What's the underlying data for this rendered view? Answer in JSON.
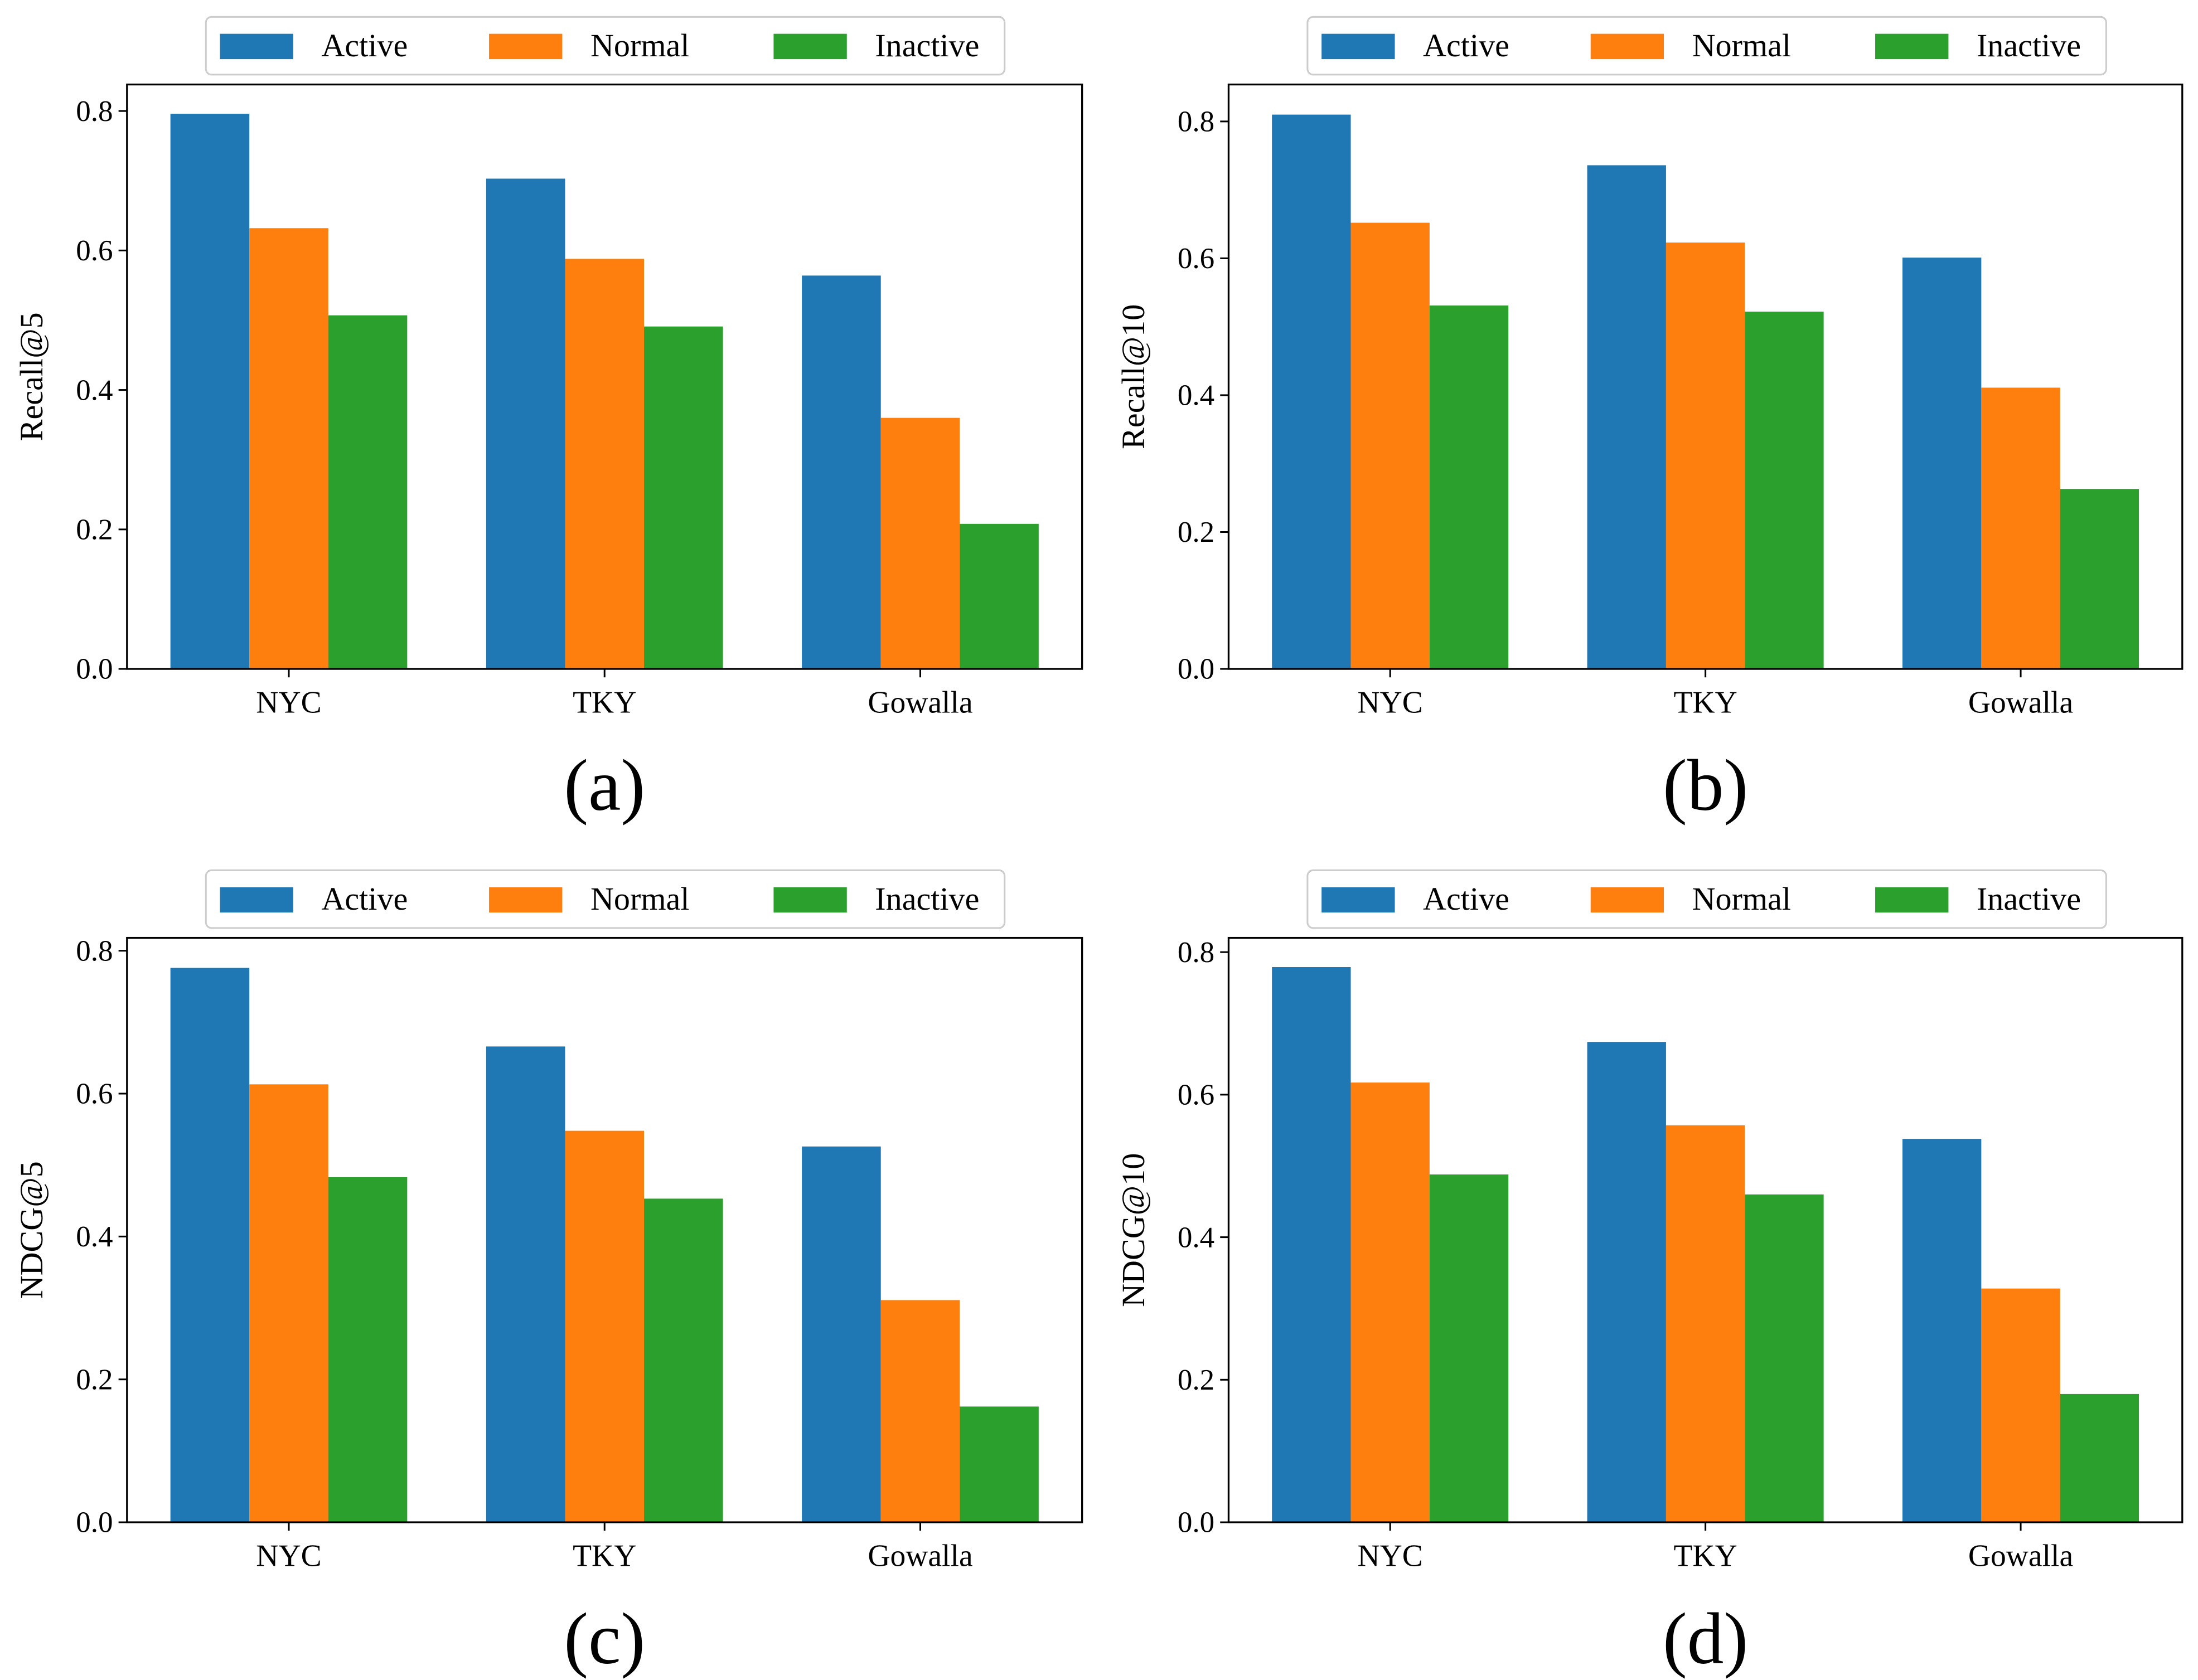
{
  "colors": {
    "Active": "#1f77b4",
    "Normal": "#ff7f0e",
    "Inactive": "#2ca02c"
  },
  "chart_data": [
    {
      "type": "bar",
      "panel_label": "(a)",
      "ylabel": "Recall@5",
      "xlabel": "",
      "categories": [
        "NYC",
        "TKY",
        "Gowalla"
      ],
      "series": [
        {
          "name": "Active",
          "values": [
            0.796,
            0.703,
            0.564
          ]
        },
        {
          "name": "Normal",
          "values": [
            0.632,
            0.588,
            0.36
          ]
        },
        {
          "name": "Inactive",
          "values": [
            0.507,
            0.491,
            0.208
          ]
        }
      ],
      "ylim": [
        0,
        0.838
      ],
      "yticks": [
        "0.0",
        "0.2",
        "0.4",
        "0.6",
        "0.8"
      ],
      "legend": "top-center-outside",
      "grid": false
    },
    {
      "type": "bar",
      "panel_label": "(b)",
      "ylabel": "Recall@10",
      "xlabel": "",
      "categories": [
        "NYC",
        "TKY",
        "Gowalla"
      ],
      "series": [
        {
          "name": "Active",
          "values": [
            0.81,
            0.736,
            0.601
          ]
        },
        {
          "name": "Normal",
          "values": [
            0.652,
            0.623,
            0.411
          ]
        },
        {
          "name": "Inactive",
          "values": [
            0.531,
            0.522,
            0.263
          ]
        }
      ],
      "ylim": [
        0,
        0.854
      ],
      "yticks": [
        "0.0",
        "0.2",
        "0.4",
        "0.6",
        "0.8"
      ],
      "legend": "top-center-outside",
      "grid": false
    },
    {
      "type": "bar",
      "panel_label": "(c)",
      "ylabel": "NDCG@5",
      "xlabel": "",
      "categories": [
        "NYC",
        "TKY",
        "Gowalla"
      ],
      "series": [
        {
          "name": "Active",
          "values": [
            0.776,
            0.666,
            0.526
          ]
        },
        {
          "name": "Normal",
          "values": [
            0.613,
            0.548,
            0.311
          ]
        },
        {
          "name": "Inactive",
          "values": [
            0.483,
            0.453,
            0.162
          ]
        }
      ],
      "ylim": [
        0,
        0.818
      ],
      "yticks": [
        "0.0",
        "0.2",
        "0.4",
        "0.6",
        "0.8"
      ],
      "legend": "top-center-outside",
      "grid": false
    },
    {
      "type": "bar",
      "panel_label": "(d)",
      "ylabel": "NDCG@10",
      "xlabel": "",
      "categories": [
        "NYC",
        "TKY",
        "Gowalla"
      ],
      "series": [
        {
          "name": "Active",
          "values": [
            0.779,
            0.674,
            0.538
          ]
        },
        {
          "name": "Normal",
          "values": [
            0.617,
            0.557,
            0.328
          ]
        },
        {
          "name": "Inactive",
          "values": [
            0.488,
            0.46,
            0.18
          ]
        }
      ],
      "ylim": [
        0,
        0.82
      ],
      "yticks": [
        "0.0",
        "0.2",
        "0.4",
        "0.6",
        "0.8"
      ],
      "legend": "top-center-outside",
      "grid": false
    }
  ]
}
